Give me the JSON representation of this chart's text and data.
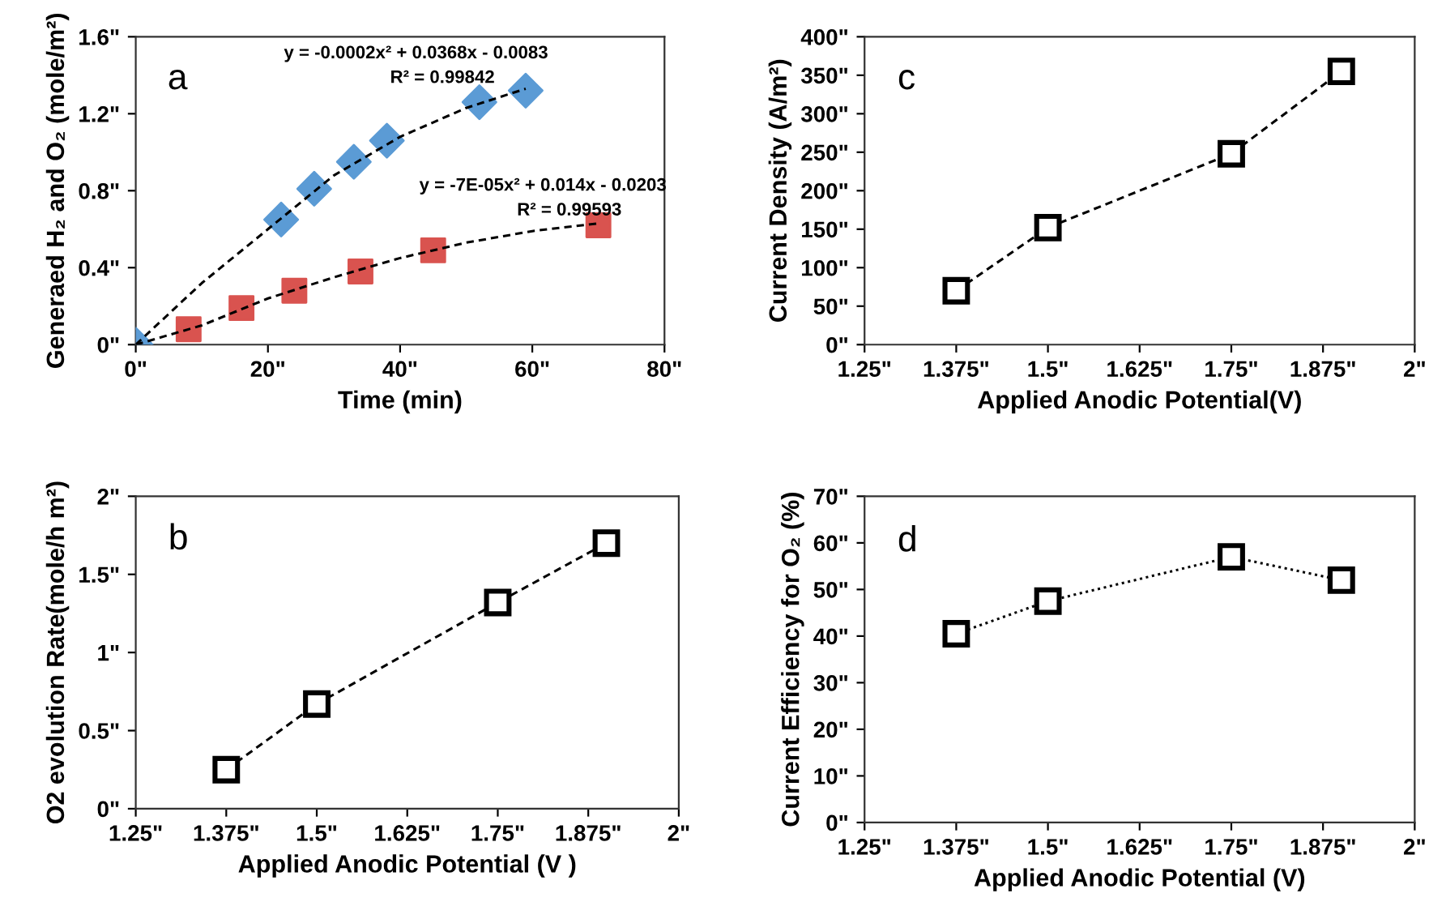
{
  "chart_data": [
    {
      "type": "scatter",
      "xlabel": "Time (min)",
      "ylabel": "Generaed H₂ and O₂ (mole/m²)",
      "xlim": [
        0,
        80
      ],
      "xticks": [
        {
          "value": 0,
          "label": "0\""
        },
        {
          "value": 20,
          "label": "20\""
        },
        {
          "value": 40,
          "label": "40\""
        },
        {
          "value": 60,
          "label": "60\""
        },
        {
          "value": 80,
          "label": "80\""
        }
      ],
      "ylim": [
        0,
        1.6
      ],
      "yticks": [
        {
          "value": 0,
          "label": "0\""
        },
        {
          "value": 0.4,
          "label": "0.4\""
        },
        {
          "value": 0.8,
          "label": "0.8\""
        },
        {
          "value": 1.2,
          "label": "1.2\""
        },
        {
          "value": 1.6,
          "label": "1.6\""
        }
      ],
      "series": [
        {
          "type": "scatter",
          "marker": "diamond",
          "color": "#5b9bd5",
          "x": [
            0,
            22,
            27,
            33,
            38,
            52,
            59
          ],
          "values": [
            0,
            0.65,
            0.81,
            0.95,
            1.06,
            1.26,
            1.32
          ]
        },
        {
          "type": "scatter",
          "marker": "square",
          "color": "#d9534f",
          "x": [
            8,
            16,
            24,
            34,
            45,
            70
          ],
          "values": [
            0.08,
            0.19,
            0.28,
            0.38,
            0.49,
            0.62
          ]
        },
        {
          "type": "line",
          "marker": "none",
          "line_style": "dashed",
          "color": "#000000",
          "x": [
            0,
            10,
            20,
            30,
            40,
            50,
            59
          ],
          "values": [
            0,
            0.32,
            0.6,
            0.88,
            1.08,
            1.23,
            1.33
          ]
        },
        {
          "type": "line",
          "marker": "none",
          "line_style": "dashed",
          "color": "#000000",
          "x": [
            0,
            10,
            20,
            30,
            40,
            50,
            60,
            70
          ],
          "values": [
            0,
            0.1,
            0.24,
            0.35,
            0.45,
            0.53,
            0.59,
            0.63
          ]
        }
      ],
      "annotations": [
        "a",
        "y = -0.0002x² + 0.0368x - 0.0083",
        "R² = 0.99842",
        "y = -7E-05x² + 0.014x - 0.0203",
        "R² = 0.99593"
      ]
    },
    {
      "type": "line",
      "xlabel": "Applied Anodic Potential(V)",
      "ylabel": "Current Density (A/m²)",
      "xlim": [
        1.25,
        2
      ],
      "xticks": [
        {
          "value": 1.25,
          "label": "1.25\""
        },
        {
          "value": 1.375,
          "label": "1.375\""
        },
        {
          "value": 1.5,
          "label": "1.5\""
        },
        {
          "value": 1.625,
          "label": "1.625\""
        },
        {
          "value": 1.75,
          "label": "1.75\""
        },
        {
          "value": 1.875,
          "label": "1.875\""
        },
        {
          "value": 2,
          "label": "2\""
        }
      ],
      "ylim": [
        0,
        400
      ],
      "yticks": [
        {
          "value": 0,
          "label": "0\""
        },
        {
          "value": 50,
          "label": "50\""
        },
        {
          "value": 100,
          "label": "100\""
        },
        {
          "value": 150,
          "label": "150\""
        },
        {
          "value": 200,
          "label": "200\""
        },
        {
          "value": 250,
          "label": "250\""
        },
        {
          "value": 300,
          "label": "300\""
        },
        {
          "value": 350,
          "label": "350\""
        },
        {
          "value": 400,
          "label": "400\""
        }
      ],
      "marker": "square",
      "line_style": "dashed",
      "series": [
        {
          "color": "#000000",
          "x": [
            1.375,
            1.5,
            1.75,
            1.9
          ],
          "values": [
            70,
            152,
            248,
            355
          ]
        }
      ],
      "annotations": [
        "c"
      ]
    },
    {
      "type": "line",
      "xlabel": "Applied Anodic Potential (V )",
      "ylabel": "O2 evolution Rate(mole/h m²)",
      "xlim": [
        1.25,
        2
      ],
      "xticks": [
        {
          "value": 1.25,
          "label": "1.25\""
        },
        {
          "value": 1.375,
          "label": "1.375\""
        },
        {
          "value": 1.5,
          "label": "1.5\""
        },
        {
          "value": 1.625,
          "label": "1.625\""
        },
        {
          "value": 1.75,
          "label": "1.75\""
        },
        {
          "value": 1.875,
          "label": "1.875\""
        },
        {
          "value": 2,
          "label": "2\""
        }
      ],
      "ylim": [
        0,
        2
      ],
      "yticks": [
        {
          "value": 0,
          "label": "0\""
        },
        {
          "value": 0.5,
          "label": "0.5\""
        },
        {
          "value": 1,
          "label": "1\""
        },
        {
          "value": 1.5,
          "label": "1.5\""
        },
        {
          "value": 2,
          "label": "2\""
        }
      ],
      "marker": "square",
      "line_style": "dashed",
      "series": [
        {
          "color": "#000000",
          "x": [
            1.375,
            1.5,
            1.75,
            1.9
          ],
          "values": [
            0.25,
            0.67,
            1.32,
            1.7
          ]
        }
      ],
      "annotations": [
        "b"
      ]
    },
    {
      "type": "line",
      "xlabel": "Applied Anodic Potential (V)",
      "ylabel": "Current Efficiency for O₂ (%)",
      "xlim": [
        1.25,
        2
      ],
      "xticks": [
        {
          "value": 1.25,
          "label": "1.25\""
        },
        {
          "value": 1.375,
          "label": "1.375\""
        },
        {
          "value": 1.5,
          "label": "1.5\""
        },
        {
          "value": 1.625,
          "label": "1.625\""
        },
        {
          "value": 1.75,
          "label": "1.75\""
        },
        {
          "value": 1.875,
          "label": "1.875\""
        },
        {
          "value": 2,
          "label": "2\""
        }
      ],
      "ylim": [
        0,
        70
      ],
      "yticks": [
        {
          "value": 0,
          "label": "0\""
        },
        {
          "value": 10,
          "label": "10\""
        },
        {
          "value": 20,
          "label": "20\""
        },
        {
          "value": 30,
          "label": "30\""
        },
        {
          "value": 40,
          "label": "40\""
        },
        {
          "value": 50,
          "label": "50\""
        },
        {
          "value": 60,
          "label": "60\""
        },
        {
          "value": 70,
          "label": "70\""
        }
      ],
      "marker": "square",
      "line_style": "dotted",
      "series": [
        {
          "color": "#000000",
          "x": [
            1.375,
            1.5,
            1.75,
            1.9
          ],
          "values": [
            40.5,
            47.5,
            57,
            52
          ]
        }
      ],
      "annotations": [
        "d"
      ]
    }
  ]
}
